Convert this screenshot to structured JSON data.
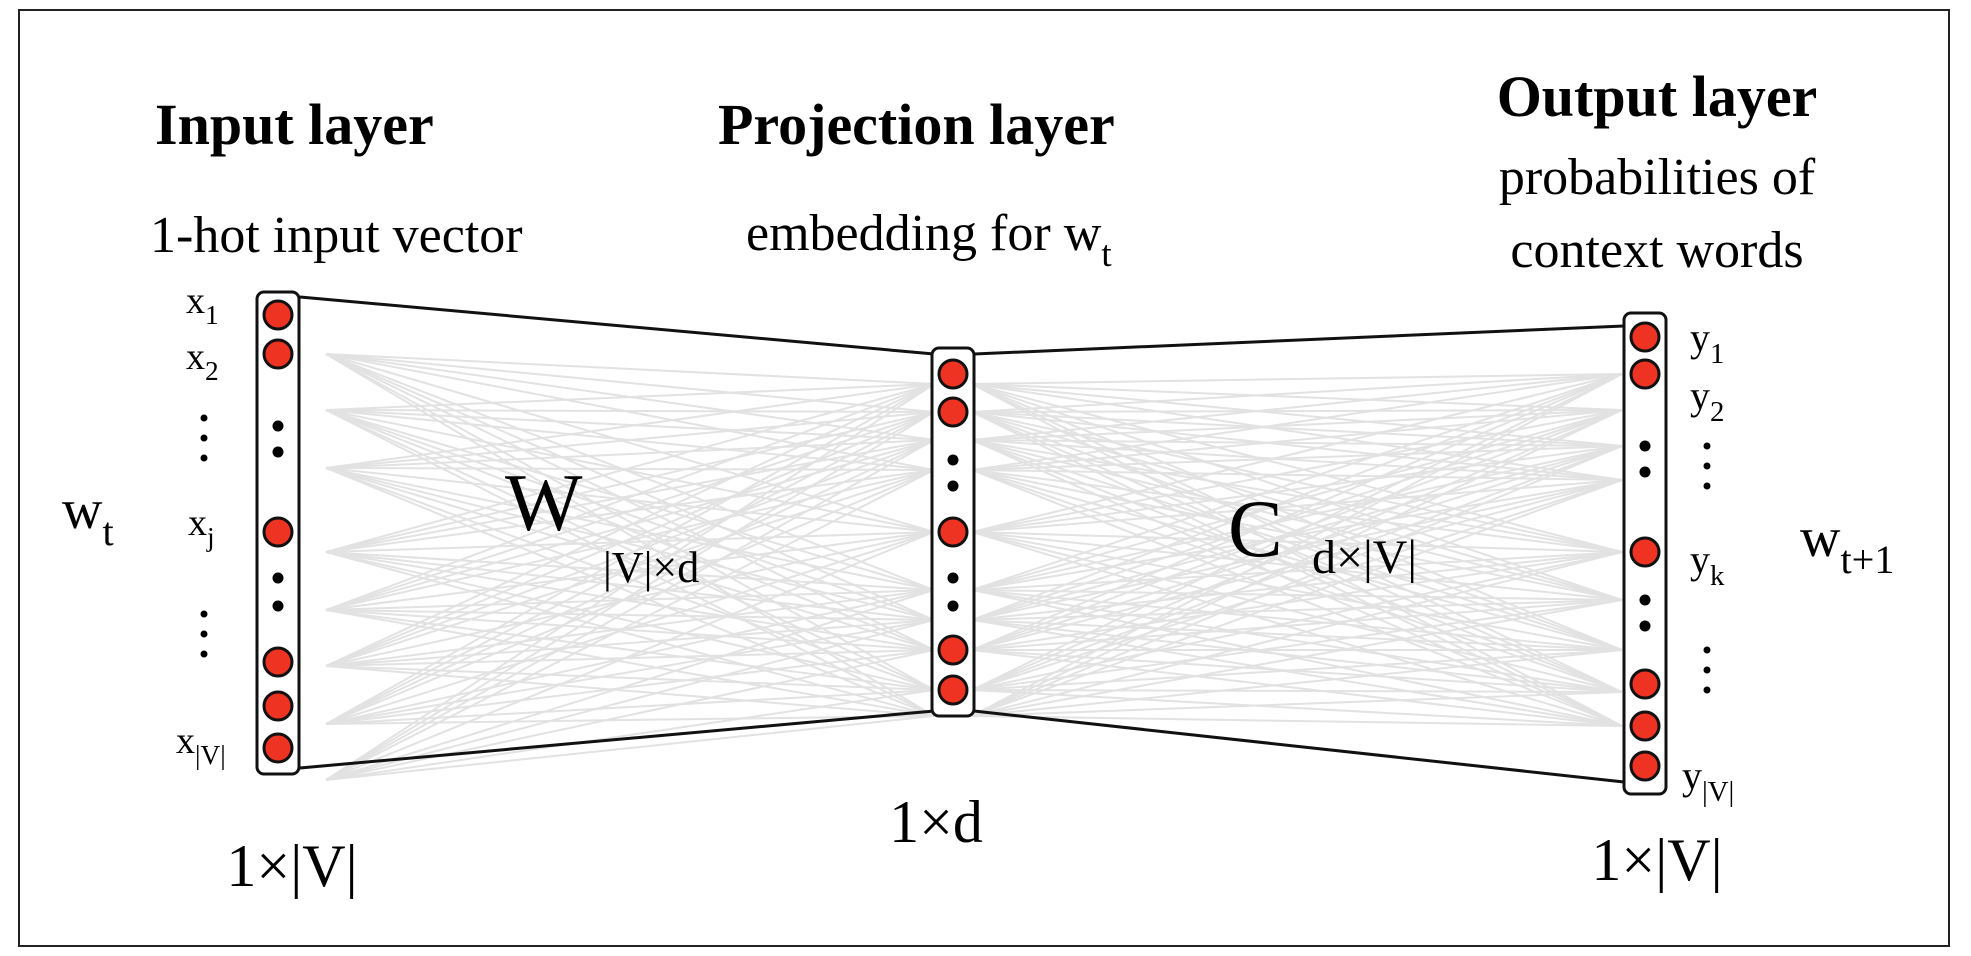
{
  "layers": {
    "input": {
      "title": "Input layer",
      "subtitle": "1-hot input vector",
      "size_label": "1×|V|"
    },
    "projection": {
      "title": "Projection layer",
      "subtitle": "embedding for w",
      "subtitle_sub": "t",
      "size_label": "1×d"
    },
    "output": {
      "title": "Output layer",
      "subtitle_line1": "probabilities of",
      "subtitle_line2": "context words",
      "size_label": "1×|V|"
    }
  },
  "input_word": {
    "base": "w",
    "sub": "t"
  },
  "output_word": {
    "base": "w",
    "sub": "t+1"
  },
  "input_node_labels": [
    {
      "base": "x",
      "sub": "1"
    },
    {
      "base": "x",
      "sub": "2"
    },
    {
      "base": "x",
      "sub": "j"
    },
    {
      "base": "x",
      "sub": "|V|"
    }
  ],
  "output_node_labels": [
    {
      "base": "y",
      "sub": "1"
    },
    {
      "base": "y",
      "sub": "2"
    },
    {
      "base": "y",
      "sub": "k"
    },
    {
      "base": "y",
      "sub": "|V|"
    }
  ],
  "weights": {
    "W": {
      "symbol": "W",
      "dims": "|V|×d"
    },
    "C": {
      "symbol": "C",
      "dims": "d×|V|"
    }
  },
  "colors": {
    "node_fill": "#ee3322",
    "node_stroke": "#111111",
    "connection": "#e2e2e2",
    "outline": "#111111"
  }
}
